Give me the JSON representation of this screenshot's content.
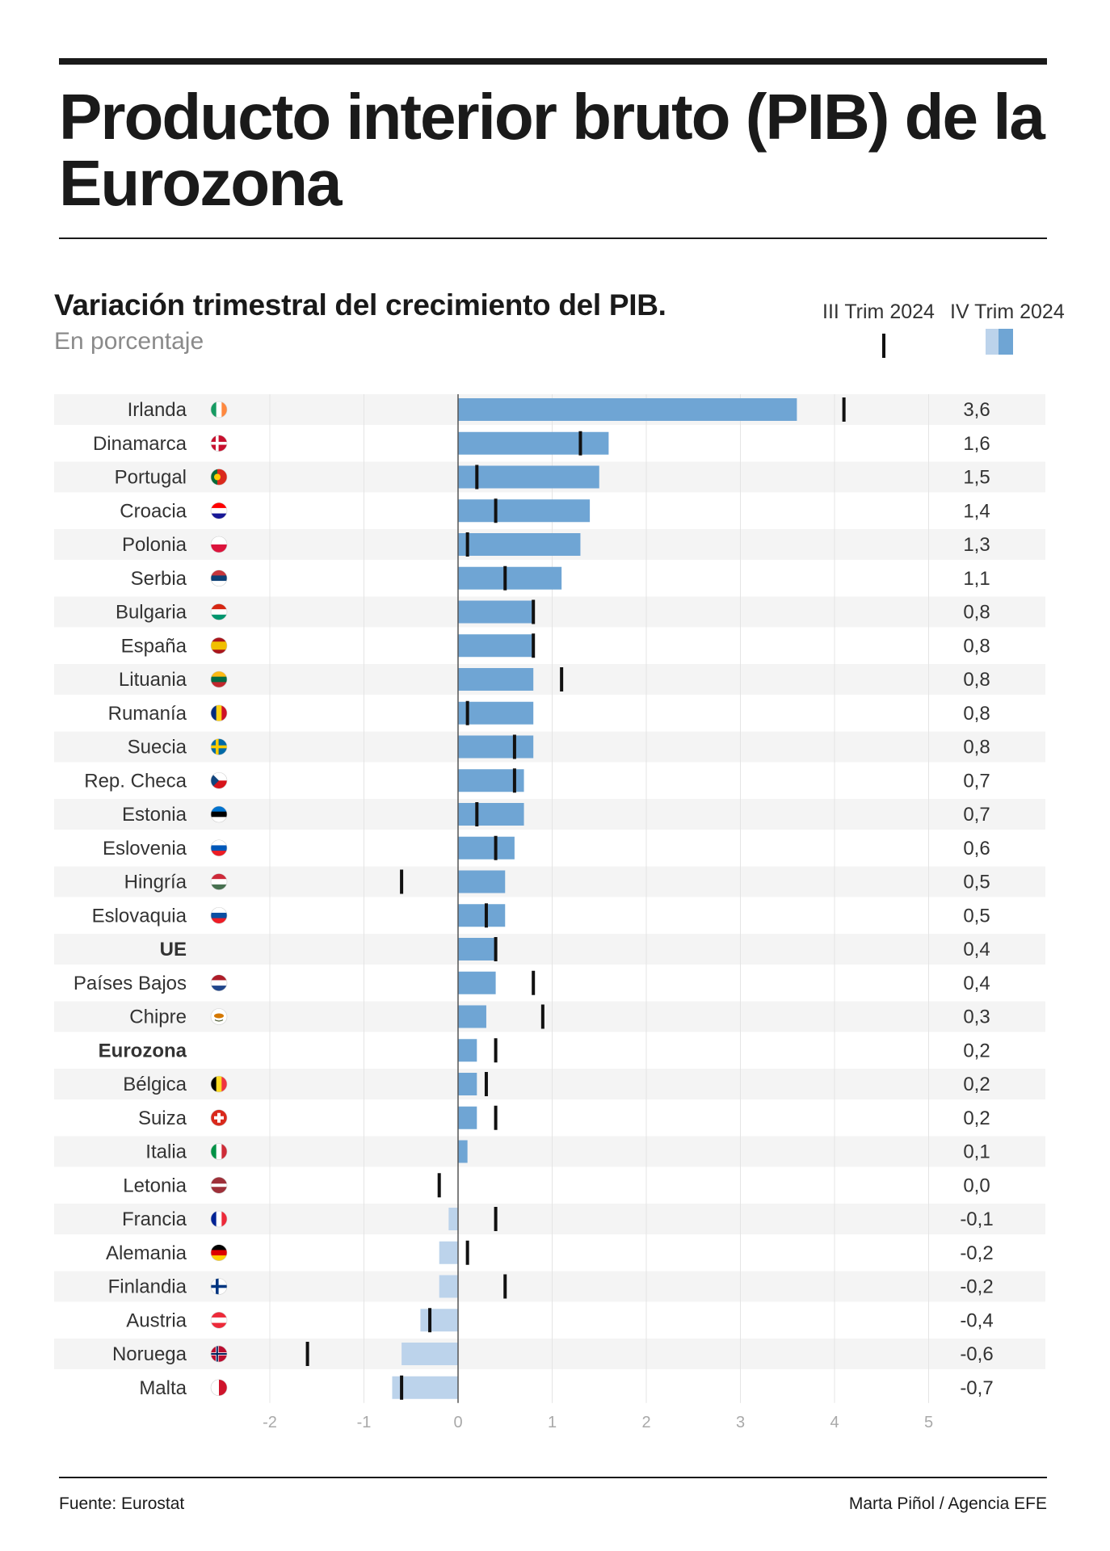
{
  "header": {
    "title": "Producto interior bruto (PIB) de la Eurozona"
  },
  "chart_data": {
    "type": "bar",
    "subtitle": "Variación trimestral del crecimiento del PIB.",
    "units": "En porcentaje",
    "legend": {
      "position": "top-right",
      "q3_label": "III Trim 2024",
      "q4_label": "IV Trim 2024"
    },
    "xlim": [
      -2,
      5
    ],
    "x_ticks": [
      "-2",
      "-1",
      "0",
      "1",
      "2",
      "3",
      "4",
      "5"
    ],
    "grid": true,
    "colors": {
      "positive": "#6fa5d4",
      "negative": "#bcd3eb",
      "q3_marker": "#111111",
      "row_stripe": "#f4f4f4",
      "grid": "#e4e4e4",
      "zero_line": "#555555"
    },
    "categories": [
      "Irlanda",
      "Dinamarca",
      "Portugal",
      "Croacia",
      "Polonia",
      "Serbia",
      "Bulgaria",
      "España",
      "Lituania",
      "Rumanía",
      "Suecia",
      "Rep. Checa",
      "Estonia",
      "Eslovenia",
      "Hingría",
      "Eslovaquia",
      "UE",
      "Países Bajos",
      "Chipre",
      "Eurozona",
      "Bélgica",
      "Suiza",
      "Italia",
      "Letonia",
      "Francia",
      "Alemania",
      "Finlandia",
      "Austria",
      "Noruega",
      "Malta"
    ],
    "bold_categories": [
      "UE",
      "Eurozona"
    ],
    "value_labels": [
      "3,6",
      "1,6",
      "1,5",
      "1,4",
      "1,3",
      "1,1",
      "0,8",
      "0,8",
      "0,8",
      "0,8",
      "0,8",
      "0,7",
      "0,7",
      "0,6",
      "0,5",
      "0,5",
      "0,4",
      "0,4",
      "0,3",
      "0,2",
      "0,2",
      "0,2",
      "0,1",
      "0,0",
      "-0,1",
      "-0,2",
      "-0,2",
      "-0,4",
      "-0,6",
      "-0,7"
    ],
    "series": [
      {
        "name": "IV Trim 2024",
        "values": [
          3.6,
          1.6,
          1.5,
          1.4,
          1.3,
          1.1,
          0.8,
          0.8,
          0.8,
          0.8,
          0.8,
          0.7,
          0.7,
          0.6,
          0.5,
          0.5,
          0.4,
          0.4,
          0.3,
          0.2,
          0.2,
          0.2,
          0.1,
          0.0,
          -0.1,
          -0.2,
          -0.2,
          -0.4,
          -0.6,
          -0.7
        ]
      },
      {
        "name": "III Trim 2024",
        "values": [
          4.1,
          1.3,
          0.2,
          0.4,
          0.1,
          0.5,
          0.8,
          0.8,
          1.1,
          0.1,
          0.6,
          0.6,
          0.2,
          0.4,
          -0.6,
          0.3,
          0.4,
          0.8,
          0.9,
          0.4,
          0.3,
          0.4,
          null,
          -0.2,
          0.4,
          0.1,
          0.5,
          -0.3,
          -1.6,
          -0.6
        ]
      }
    ],
    "flags": [
      "ireland-flag-icon",
      "denmark-flag-icon",
      "portugal-flag-icon",
      "croatia-flag-icon",
      "poland-flag-icon",
      "serbia-flag-icon",
      "bulgaria-flag-icon",
      "spain-flag-icon",
      "lithuania-flag-icon",
      "romania-flag-icon",
      "sweden-flag-icon",
      "czechia-flag-icon",
      "estonia-flag-icon",
      "slovenia-flag-icon",
      "hungary-flag-icon",
      "slovakia-flag-icon",
      null,
      "netherlands-flag-icon",
      "cyprus-flag-icon",
      null,
      "belgium-flag-icon",
      "switzerland-flag-icon",
      "italy-flag-icon",
      "latvia-flag-icon",
      "france-flag-icon",
      "germany-flag-icon",
      "finland-flag-icon",
      "austria-flag-icon",
      "norway-flag-icon",
      "malta-flag-icon"
    ]
  },
  "footer": {
    "source": "Fuente: Eurostat",
    "credit": "Marta Piñol / Agencia EFE"
  }
}
